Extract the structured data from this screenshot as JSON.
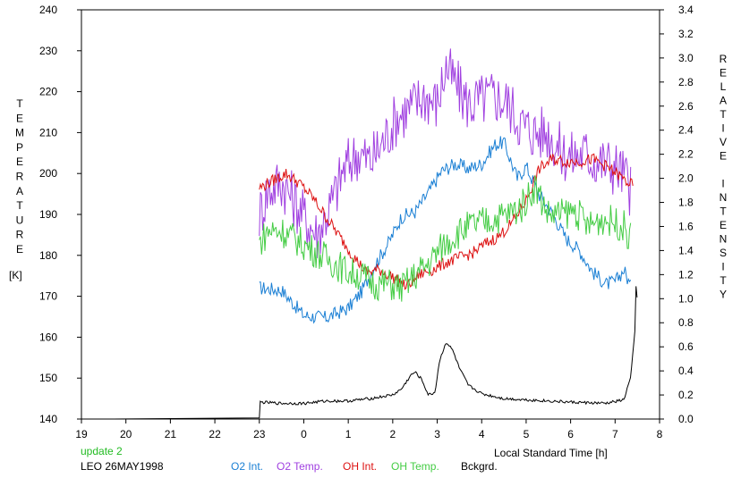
{
  "header": {},
  "footer": {
    "update_label": "update 2",
    "station_label": "LEO 26MAY1998",
    "update_color": "#22bb22"
  },
  "chart_data": {
    "type": "line",
    "xlabel": "Local Standard Time [h]",
    "ylabel_left_letters": [
      "T",
      "E",
      "M",
      "P",
      "E",
      "R",
      "A",
      "T",
      "U",
      "R",
      "E"
    ],
    "ylabel_left_unit": "[K]",
    "ylabel_right_letters": [
      "R",
      "E",
      "L",
      "A",
      "T",
      "I",
      "V",
      "E",
      "",
      "I",
      "N",
      "T",
      "E",
      "N",
      "S",
      "I",
      "T",
      "Y"
    ],
    "x_ticks": [
      "19",
      "20",
      "21",
      "22",
      "23",
      "0",
      "1",
      "2",
      "3",
      "4",
      "5",
      "6",
      "7",
      "8"
    ],
    "x_range_hours": [
      19,
      32
    ],
    "y_left_ticks": [
      140,
      150,
      160,
      170,
      180,
      190,
      200,
      210,
      220,
      230,
      240
    ],
    "ylim_left": [
      140,
      240
    ],
    "y_right_ticks": [
      "0.0",
      "0.2",
      "0.4",
      "0.6",
      "0.8",
      "1.0",
      "1.2",
      "1.4",
      "1.6",
      "1.8",
      "2.0",
      "2.2",
      "2.4",
      "2.6",
      "2.8",
      "3.0",
      "3.2",
      "3.4"
    ],
    "ylim_right": [
      0,
      3.4
    ],
    "grid": false,
    "legend_position": "bottom",
    "series": [
      {
        "name": "O2 Int.",
        "color": "#1a7fd4",
        "axis": "right",
        "points": [
          [
            23.0,
            1.09
          ],
          [
            23.5,
            1.07
          ],
          [
            24.0,
            0.86
          ],
          [
            24.5,
            0.84
          ],
          [
            25.0,
            0.92
          ],
          [
            25.3,
            1.06
          ],
          [
            25.6,
            1.28
          ],
          [
            25.9,
            1.46
          ],
          [
            26.2,
            1.68
          ],
          [
            26.5,
            1.72
          ],
          [
            26.8,
            1.88
          ],
          [
            27.1,
            2.06
          ],
          [
            27.4,
            2.12
          ],
          [
            27.7,
            2.08
          ],
          [
            28.0,
            2.12
          ],
          [
            28.3,
            2.28
          ],
          [
            28.5,
            2.3
          ],
          [
            28.8,
            2.0
          ],
          [
            29.0,
            2.1
          ],
          [
            29.3,
            1.86
          ],
          [
            29.6,
            1.7
          ],
          [
            29.9,
            1.5
          ],
          [
            30.2,
            1.4
          ],
          [
            30.5,
            1.22
          ],
          [
            30.8,
            1.12
          ],
          [
            31.0,
            1.14
          ],
          [
            31.2,
            1.24
          ],
          [
            31.35,
            1.1
          ]
        ]
      },
      {
        "name": "O2 Temp.",
        "color": "#a040e0",
        "axis": "left",
        "points": [
          [
            23.0,
            190
          ],
          [
            23.2,
            196
          ],
          [
            23.5,
            198
          ],
          [
            23.8,
            193
          ],
          [
            24.1,
            188
          ],
          [
            24.3,
            185
          ],
          [
            24.6,
            192
          ],
          [
            24.9,
            201
          ],
          [
            25.2,
            205
          ],
          [
            25.5,
            203
          ],
          [
            25.8,
            208
          ],
          [
            26.1,
            214
          ],
          [
            26.4,
            216
          ],
          [
            26.7,
            219
          ],
          [
            27.0,
            217
          ],
          [
            27.2,
            226
          ],
          [
            27.4,
            222
          ],
          [
            27.7,
            217
          ],
          [
            28.0,
            218
          ],
          [
            28.3,
            219
          ],
          [
            28.6,
            217
          ],
          [
            28.9,
            212
          ],
          [
            29.2,
            210
          ],
          [
            29.5,
            210
          ],
          [
            29.8,
            205
          ],
          [
            30.0,
            204
          ],
          [
            30.3,
            205
          ],
          [
            30.6,
            203
          ],
          [
            30.9,
            202
          ],
          [
            31.1,
            201
          ],
          [
            31.3,
            198
          ],
          [
            31.35,
            195
          ]
        ]
      },
      {
        "name": "OH Int.",
        "color": "#dd1111",
        "axis": "right",
        "points": [
          [
            23.0,
            1.92
          ],
          [
            23.3,
            1.98
          ],
          [
            23.6,
            2.04
          ],
          [
            23.9,
            1.96
          ],
          [
            24.2,
            1.84
          ],
          [
            24.5,
            1.68
          ],
          [
            24.8,
            1.52
          ],
          [
            25.1,
            1.36
          ],
          [
            25.4,
            1.22
          ],
          [
            25.7,
            1.24
          ],
          [
            26.0,
            1.18
          ],
          [
            26.3,
            1.1
          ],
          [
            26.6,
            1.2
          ],
          [
            26.9,
            1.24
          ],
          [
            27.2,
            1.3
          ],
          [
            27.5,
            1.34
          ],
          [
            27.8,
            1.38
          ],
          [
            28.1,
            1.46
          ],
          [
            28.4,
            1.52
          ],
          [
            28.7,
            1.64
          ],
          [
            29.0,
            1.82
          ],
          [
            29.3,
            2.08
          ],
          [
            29.6,
            2.16
          ],
          [
            29.9,
            2.14
          ],
          [
            30.2,
            2.14
          ],
          [
            30.5,
            2.16
          ],
          [
            30.8,
            2.1
          ],
          [
            31.1,
            2.02
          ],
          [
            31.3,
            1.96
          ],
          [
            31.4,
            1.94
          ]
        ]
      },
      {
        "name": "OH Temp.",
        "color": "#44cc44",
        "axis": "left",
        "points": [
          [
            23.0,
            183
          ],
          [
            23.2,
            186
          ],
          [
            23.5,
            186
          ],
          [
            23.8,
            184
          ],
          [
            24.1,
            182
          ],
          [
            24.4,
            180
          ],
          [
            24.7,
            178
          ],
          [
            25.0,
            176
          ],
          [
            25.3,
            175
          ],
          [
            25.6,
            173
          ],
          [
            25.9,
            173
          ],
          [
            26.2,
            172
          ],
          [
            26.5,
            175
          ],
          [
            26.8,
            178
          ],
          [
            27.1,
            182
          ],
          [
            27.4,
            185
          ],
          [
            27.7,
            187
          ],
          [
            28.0,
            188
          ],
          [
            28.3,
            189
          ],
          [
            28.6,
            190
          ],
          [
            28.9,
            192
          ],
          [
            29.2,
            197
          ],
          [
            29.5,
            190
          ],
          [
            29.8,
            190
          ],
          [
            30.1,
            191
          ],
          [
            30.4,
            187
          ],
          [
            30.7,
            189
          ],
          [
            31.0,
            188
          ],
          [
            31.2,
            187
          ],
          [
            31.35,
            184
          ]
        ]
      },
      {
        "name": "Bckgrd.",
        "color": "#000000",
        "axis": "right",
        "points": [
          [
            19.7,
            0.0
          ],
          [
            22.5,
            0.0
          ],
          [
            23.0,
            0.01
          ],
          [
            23.02,
            0.14
          ],
          [
            23.5,
            0.13
          ],
          [
            24.0,
            0.13
          ],
          [
            24.5,
            0.15
          ],
          [
            25.0,
            0.15
          ],
          [
            25.5,
            0.17
          ],
          [
            26.0,
            0.2
          ],
          [
            26.2,
            0.25
          ],
          [
            26.4,
            0.36
          ],
          [
            26.5,
            0.39
          ],
          [
            26.65,
            0.33
          ],
          [
            26.8,
            0.2
          ],
          [
            26.95,
            0.22
          ],
          [
            27.05,
            0.48
          ],
          [
            27.2,
            0.64
          ],
          [
            27.35,
            0.57
          ],
          [
            27.5,
            0.42
          ],
          [
            27.7,
            0.28
          ],
          [
            28.0,
            0.21
          ],
          [
            28.5,
            0.17
          ],
          [
            29.0,
            0.16
          ],
          [
            30.0,
            0.14
          ],
          [
            30.8,
            0.13
          ],
          [
            31.2,
            0.16
          ],
          [
            31.35,
            0.35
          ],
          [
            31.45,
            0.75
          ],
          [
            31.48,
            1.28
          ],
          [
            31.5,
            0.92
          ]
        ]
      }
    ]
  }
}
